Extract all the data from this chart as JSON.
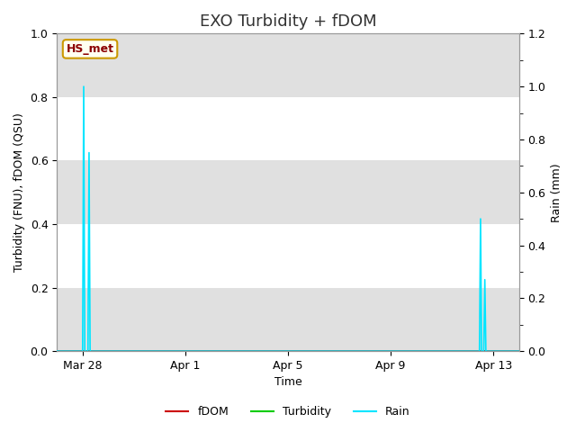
{
  "title": "EXO Turbidity + fDOM",
  "xlabel": "Time",
  "ylabel_left": "Turbidity (FNU), fDOM (QSU)",
  "ylabel_right": "Rain (mm)",
  "ylim_left": [
    0,
    1.0
  ],
  "ylim_right": [
    0.0,
    1.2
  ],
  "yticks_left": [
    0.0,
    0.2,
    0.4,
    0.6,
    0.8,
    1.0
  ],
  "yticks_right": [
    0.0,
    0.2,
    0.4,
    0.6,
    0.8,
    1.0,
    1.2
  ],
  "xtick_labels": [
    "Mar 28",
    "Apr 1",
    "Apr 5",
    "Apr 9",
    "Apr 13"
  ],
  "xtick_days_from_start": [
    1,
    5,
    9,
    13,
    17
  ],
  "total_days": 18,
  "label_box_text": "HS_met",
  "label_box_color": "#fffff0",
  "label_box_border": "#cc9900",
  "background_color": "#ffffff",
  "plot_bg_color": "#ffffff",
  "band_color": "#e0e0e0",
  "grid_color": "#ffffff",
  "rain_color": "#00e5ff",
  "turbidity_color": "#00cc00",
  "fdom_color": "#cc0000",
  "rain_spike1_day": 1.05,
  "rain_spike1_val1": 1.0,
  "rain_spike1_day2": 1.25,
  "rain_spike1_val2": 0.75,
  "rain_spike2_day": 16.5,
  "rain_spike2_val1": 0.5,
  "rain_spike2_day2": 16.7,
  "rain_spike2_val2": 0.27,
  "title_fontsize": 13,
  "axis_label_fontsize": 9,
  "tick_fontsize": 9
}
